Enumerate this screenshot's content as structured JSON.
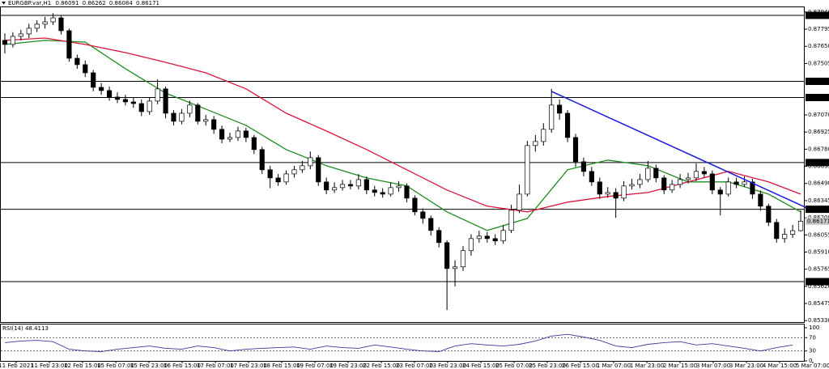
{
  "chart_data": {
    "type": "candlestick",
    "symbol": "EURGBP.var,H1",
    "ylim": [
      0.85318,
      0.87987
    ],
    "yticks": [
      {
        "value": 0.8794,
        "label": "0.87940"
      },
      0.87795,
      {
        "value": 0.8765,
        "label": "0.87650"
      },
      0.87505,
      {
        "value": 0.8707,
        "label": "0.87070"
      },
      0.86925,
      {
        "value": 0.8678,
        "label": "0.86780"
      },
      0.86635,
      {
        "value": 0.8649,
        "label": "0.86490"
      },
      0.86345,
      {
        "value": 0.862,
        "label": "0.86200"
      },
      0.86055,
      {
        "value": 0.8591,
        "label": "0.85910"
      },
      0.85765,
      {
        "value": 0.8562,
        "label": "0.85620"
      },
      0.85475,
      {
        "value": 0.8533,
        "label": "0.85330"
      }
    ],
    "levels": [
      0.87912,
      0.87354,
      0.87217,
      0.86667,
      0.86272,
      {
        "value": 0.8566,
        "label": "0.85660"
      }
    ],
    "time_labels": [
      "11 Feb 2021",
      "11 Feb 23:00",
      "12 Feb 15:00",
      "15 Feb 07:00",
      "15 Feb 23:00",
      "16 Feb 15:00",
      "17 Feb 07:00",
      "17 Feb 23:00",
      "18 Feb 15:00",
      "19 Feb 07:00",
      "19 Feb 23:00",
      "22 Feb 15:00",
      "23 Feb 07:00",
      "23 Feb 23:00",
      "24 Feb 15:00",
      "25 Feb 07:00",
      "25 Feb 23:00",
      "26 Feb 15:00",
      "1 Mar 07:00",
      "1 Mar 23:00",
      "2 Mar 15:00",
      "3 Mar 07:00",
      "3 Mar 23:00",
      "4 Mar 15:00",
      "5 Mar 07:00"
    ],
    "candles": {
      "open": [
        0.877,
        0.87666,
        0.87734,
        0.87755,
        0.87803,
        0.87837,
        0.87857,
        0.87891,
        0.87782,
        0.87549,
        0.87495,
        0.87426,
        0.87303,
        0.87276,
        0.87221,
        0.87201,
        0.8718,
        0.87166,
        0.87098,
        0.87187,
        0.8729,
        0.87084,
        0.87016,
        0.87084,
        0.87153,
        0.87016,
        0.8703,
        0.86948,
        0.86865,
        0.86879,
        0.86934,
        0.86879,
        0.86777,
        0.86606,
        0.86537,
        0.86503,
        0.86571,
        0.86606,
        0.8664,
        0.86708,
        0.86503,
        0.86435,
        0.86455,
        0.86482,
        0.86469,
        0.86523,
        0.86435,
        0.86414,
        0.864,
        0.86455,
        0.86469,
        0.86366,
        0.8625,
        0.86195,
        0.86093,
        0.8599,
        0.85771,
        0.85785,
        0.85922,
        0.86024,
        0.86045,
        0.86024,
        0.86004,
        0.86093,
        0.86264,
        0.864,
        0.86811,
        0.86845,
        0.86948,
        0.87153,
        0.87084,
        0.86879,
        0.86674,
        0.86592,
        0.86503,
        0.864,
        0.86414,
        0.86366,
        0.86469,
        0.86482,
        0.86523,
        0.86619,
        0.86537,
        0.86435,
        0.86482,
        0.86523,
        0.86537,
        0.86592,
        0.86571,
        0.86435,
        0.864,
        0.86503,
        0.86482,
        0.86503,
        0.864,
        0.86298,
        0.86161,
        0.86024,
        0.8606,
        0.86091
      ],
      "high": [
        0.8776,
        0.8777,
        0.8779,
        0.8784,
        0.8787,
        0.879,
        0.8793,
        0.8791,
        0.878,
        0.8758,
        0.8753,
        0.8745,
        0.8734,
        0.8731,
        0.8726,
        0.8724,
        0.8722,
        0.872,
        0.8722,
        0.8737,
        0.8731,
        0.8711,
        0.8712,
        0.8719,
        0.8717,
        0.8707,
        0.8706,
        0.8698,
        0.8692,
        0.8697,
        0.8696,
        0.869,
        0.868,
        0.8664,
        0.8657,
        0.866,
        0.8664,
        0.8668,
        0.8676,
        0.8673,
        0.8654,
        0.865,
        0.8652,
        0.8652,
        0.8657,
        0.8655,
        0.8647,
        0.8645,
        0.865,
        0.8651,
        0.8649,
        0.8639,
        0.8628,
        0.8622,
        0.8612,
        0.8601,
        0.8584,
        0.8596,
        0.8606,
        0.8609,
        0.8608,
        0.8606,
        0.8614,
        0.8631,
        0.8648,
        0.8685,
        0.869,
        0.87,
        0.8729,
        0.872,
        0.8711,
        0.8691,
        0.8671,
        0.8663,
        0.8654,
        0.8646,
        0.8645,
        0.8651,
        0.8653,
        0.8657,
        0.8668,
        0.8665,
        0.8656,
        0.8652,
        0.8657,
        0.8658,
        0.8666,
        0.8663,
        0.866,
        0.8646,
        0.8654,
        0.8654,
        0.8655,
        0.8653,
        0.8643,
        0.8632,
        0.8619,
        0.8611,
        0.8614,
        0.86262
      ],
      "low": [
        0.8759,
        0.8764,
        0.877,
        0.8772,
        0.8777,
        0.878,
        0.8783,
        0.8775,
        0.8752,
        0.8746,
        0.8739,
        0.8727,
        0.8724,
        0.8719,
        0.8717,
        0.8715,
        0.8713,
        0.8706,
        0.8707,
        0.8716,
        0.8704,
        0.8698,
        0.8699,
        0.8705,
        0.8699,
        0.8698,
        0.8691,
        0.8683,
        0.8684,
        0.8685,
        0.8684,
        0.8674,
        0.8657,
        0.8645,
        0.8647,
        0.8648,
        0.8654,
        0.8658,
        0.8661,
        0.8647,
        0.864,
        0.8641,
        0.8643,
        0.8644,
        0.8644,
        0.864,
        0.8638,
        0.8637,
        0.8638,
        0.8642,
        0.8633,
        0.8622,
        0.8615,
        0.8605,
        0.8595,
        0.8542,
        0.8562,
        0.8575,
        0.8588,
        0.8599,
        0.8599,
        0.8597,
        0.8598,
        0.8607,
        0.8624,
        0.8638,
        0.8676,
        0.8681,
        0.8692,
        0.8703,
        0.8684,
        0.8663,
        0.8655,
        0.8647,
        0.8636,
        0.8637,
        0.862,
        0.8634,
        0.8644,
        0.8645,
        0.865,
        0.865,
        0.864,
        0.8641,
        0.8645,
        0.8649,
        0.8651,
        0.8654,
        0.864,
        0.8622,
        0.8638,
        0.8645,
        0.8646,
        0.8636,
        0.8626,
        0.8613,
        0.8599,
        0.8599,
        0.8603,
        0.86084
      ],
      "close": [
        0.87666,
        0.87734,
        0.87755,
        0.87803,
        0.87837,
        0.87857,
        0.87891,
        0.87782,
        0.87549,
        0.87495,
        0.87426,
        0.87303,
        0.87276,
        0.87221,
        0.87201,
        0.8718,
        0.87166,
        0.87098,
        0.87187,
        0.8729,
        0.87084,
        0.87016,
        0.87084,
        0.87153,
        0.87016,
        0.8703,
        0.86948,
        0.86865,
        0.86879,
        0.86934,
        0.86879,
        0.86777,
        0.86606,
        0.86537,
        0.86503,
        0.86571,
        0.86606,
        0.8664,
        0.86708,
        0.86503,
        0.86435,
        0.86455,
        0.86482,
        0.86469,
        0.86523,
        0.86435,
        0.86414,
        0.864,
        0.86455,
        0.86469,
        0.86366,
        0.8625,
        0.86195,
        0.86093,
        0.8599,
        0.85771,
        0.85785,
        0.85922,
        0.86024,
        0.86045,
        0.86024,
        0.86004,
        0.86093,
        0.86264,
        0.864,
        0.86811,
        0.86845,
        0.86948,
        0.87153,
        0.87084,
        0.86879,
        0.86674,
        0.86592,
        0.86503,
        0.864,
        0.86414,
        0.86366,
        0.86469,
        0.86482,
        0.86523,
        0.86619,
        0.86537,
        0.86435,
        0.86482,
        0.86523,
        0.86537,
        0.86592,
        0.86571,
        0.86435,
        0.864,
        0.86503,
        0.86482,
        0.86503,
        0.864,
        0.86298,
        0.86161,
        0.86024,
        0.8606,
        0.86091,
        0.86171
      ]
    },
    "moving_averages": [
      {
        "color": "#1e8c1e",
        "x": [
          0,
          5,
          10,
          15,
          20,
          25,
          30,
          35,
          40,
          45,
          50,
          55,
          60,
          65,
          70,
          75,
          80,
          85,
          90,
          95,
          99
        ],
        "values": [
          0.87666,
          0.877,
          0.87686,
          0.87461,
          0.87255,
          0.87119,
          0.86982,
          0.86777,
          0.8664,
          0.86537,
          0.86469,
          0.8625,
          0.86093,
          0.86195,
          0.86606,
          0.86688,
          0.8664,
          0.86503,
          0.86503,
          0.864,
          0.8625
        ]
      },
      {
        "color": "#dc143c",
        "x": [
          0,
          5,
          10,
          15,
          20,
          25,
          30,
          35,
          40,
          45,
          50,
          55,
          60,
          65,
          70,
          75,
          80,
          85,
          90,
          95,
          99
        ],
        "values": [
          0.877,
          0.8772,
          0.87666,
          0.87597,
          0.87515,
          0.87426,
          0.8729,
          0.87084,
          0.86934,
          0.86777,
          0.86606,
          0.86435,
          0.86298,
          0.8625,
          0.86332,
          0.8638,
          0.86414,
          0.86503,
          0.86592,
          0.86503,
          0.864
        ]
      }
    ],
    "trendline": {
      "color": "#1a1adc",
      "x": [
        68,
        100
      ],
      "y": [
        0.87269,
        0.86276
      ]
    },
    "rsi": {
      "title": "RSI(14) 48.4113",
      "color": "#3a3a9a",
      "ylim": [
        0,
        100
      ],
      "yticks": [
        0,
        30,
        70,
        100
      ],
      "levels": [
        30,
        70
      ],
      "x": [
        0,
        2,
        4,
        6,
        8,
        10,
        12,
        14,
        16,
        18,
        20,
        22,
        24,
        26,
        28,
        30,
        32,
        34,
        36,
        38,
        40,
        42,
        44,
        46,
        48,
        50,
        52,
        54,
        56,
        58,
        60,
        62,
        64,
        66,
        68,
        70,
        72,
        74,
        76,
        78,
        80,
        82,
        84,
        86,
        88,
        90,
        92,
        94,
        96,
        98
      ],
      "values": [
        55,
        60,
        62,
        58,
        35,
        30,
        28,
        35,
        40,
        45,
        38,
        35,
        45,
        40,
        30,
        35,
        38,
        40,
        42,
        35,
        45,
        40,
        38,
        48,
        42,
        35,
        30,
        28,
        45,
        52,
        48,
        45,
        50,
        60,
        75,
        80,
        72,
        62,
        45,
        40,
        50,
        55,
        58,
        48,
        52,
        45,
        38,
        30,
        40,
        48
      ]
    }
  }
}
